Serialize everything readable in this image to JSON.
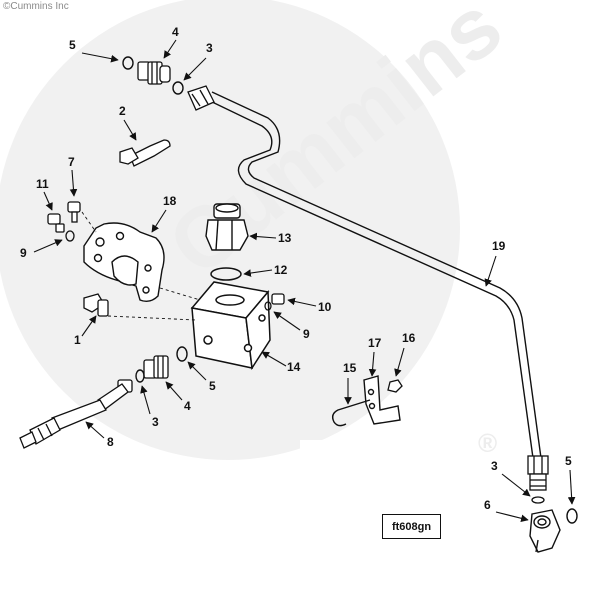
{
  "copyright": "©Cummins Inc",
  "watermark": {
    "brand": "Cummins",
    "registered_mark": "®"
  },
  "drawing_code": "ft608gn",
  "callouts": [
    {
      "id": "c5a",
      "label": "5"
    },
    {
      "id": "c4a",
      "label": "4"
    },
    {
      "id": "c3a",
      "label": "3"
    },
    {
      "id": "c2",
      "label": "2"
    },
    {
      "id": "c7",
      "label": "7"
    },
    {
      "id": "c11",
      "label": "11"
    },
    {
      "id": "c18",
      "label": "18"
    },
    {
      "id": "c9a",
      "label": "9"
    },
    {
      "id": "c13",
      "label": "13"
    },
    {
      "id": "c12",
      "label": "12"
    },
    {
      "id": "c19",
      "label": "19"
    },
    {
      "id": "c10",
      "label": "10"
    },
    {
      "id": "c1",
      "label": "1"
    },
    {
      "id": "c9b",
      "label": "9"
    },
    {
      "id": "c14",
      "label": "14"
    },
    {
      "id": "c5b",
      "label": "5"
    },
    {
      "id": "c4b",
      "label": "4"
    },
    {
      "id": "c3b",
      "label": "3"
    },
    {
      "id": "c8",
      "label": "8"
    },
    {
      "id": "c17",
      "label": "17"
    },
    {
      "id": "c16",
      "label": "16"
    },
    {
      "id": "c15",
      "label": "15"
    },
    {
      "id": "c3c",
      "label": "3"
    },
    {
      "id": "c5c",
      "label": "5"
    },
    {
      "id": "c6",
      "label": "6"
    }
  ]
}
